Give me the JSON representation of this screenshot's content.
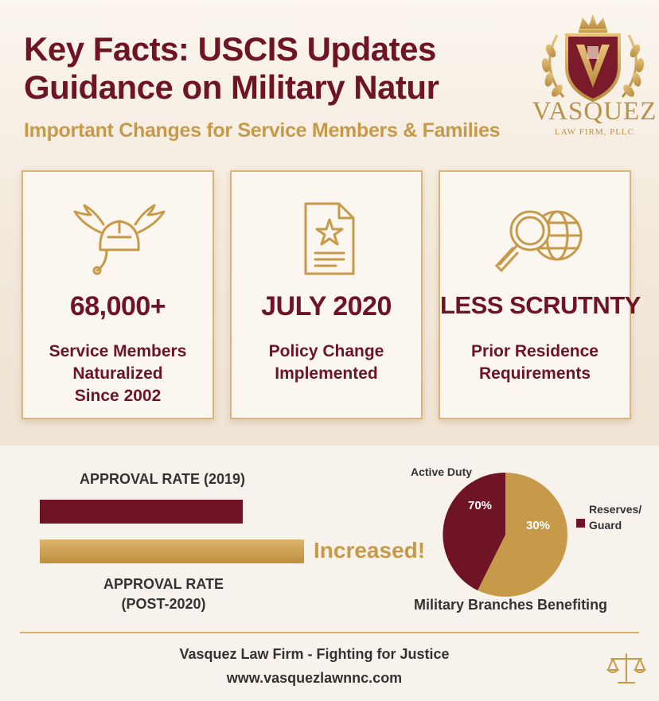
{
  "header": {
    "title": "Key Facts: USCIS Updates\nGuidance on Military Natur",
    "subtitle": "Important Changes for Service Members & Families"
  },
  "logo": {
    "name": "VASQUEZ",
    "sub": "LAW FIRM, PLLC",
    "icon": "crest-logo-icon"
  },
  "cards": [
    {
      "icon": "winged-helmet-icon",
      "value": "68,000+",
      "description": "Service Members\nNaturalized\nSince 2002"
    },
    {
      "icon": "starred-document-icon",
      "value": "JULY 2020",
      "description": "Policy Change\nImplemented"
    },
    {
      "icon": "magnifier-globe-icon",
      "value": "LESS SCRUTNTY",
      "description": "Prior Residence\nRequirements"
    }
  ],
  "approval": {
    "label_2019": "APPROVAL RATE (2019)",
    "label_post": "APPROVAL RATE\n(POST-2020)",
    "note": "Increased!"
  },
  "pie": {
    "label_active": "Active Duty",
    "label_reserves": "Reserves/\nGuard",
    "pct_active": "70%",
    "pct_reserves": "30%",
    "title": "Military Branches Benefiting"
  },
  "footer": {
    "line1": "Vasquez Law Firm - Fighting for Justice",
    "line2": "www.vasquezlawnnc.com",
    "icon": "scales-of-justice-icon"
  },
  "colors": {
    "maroon": "#6e1424",
    "gold": "#c79a4a",
    "cream": "#f6efe6"
  }
}
